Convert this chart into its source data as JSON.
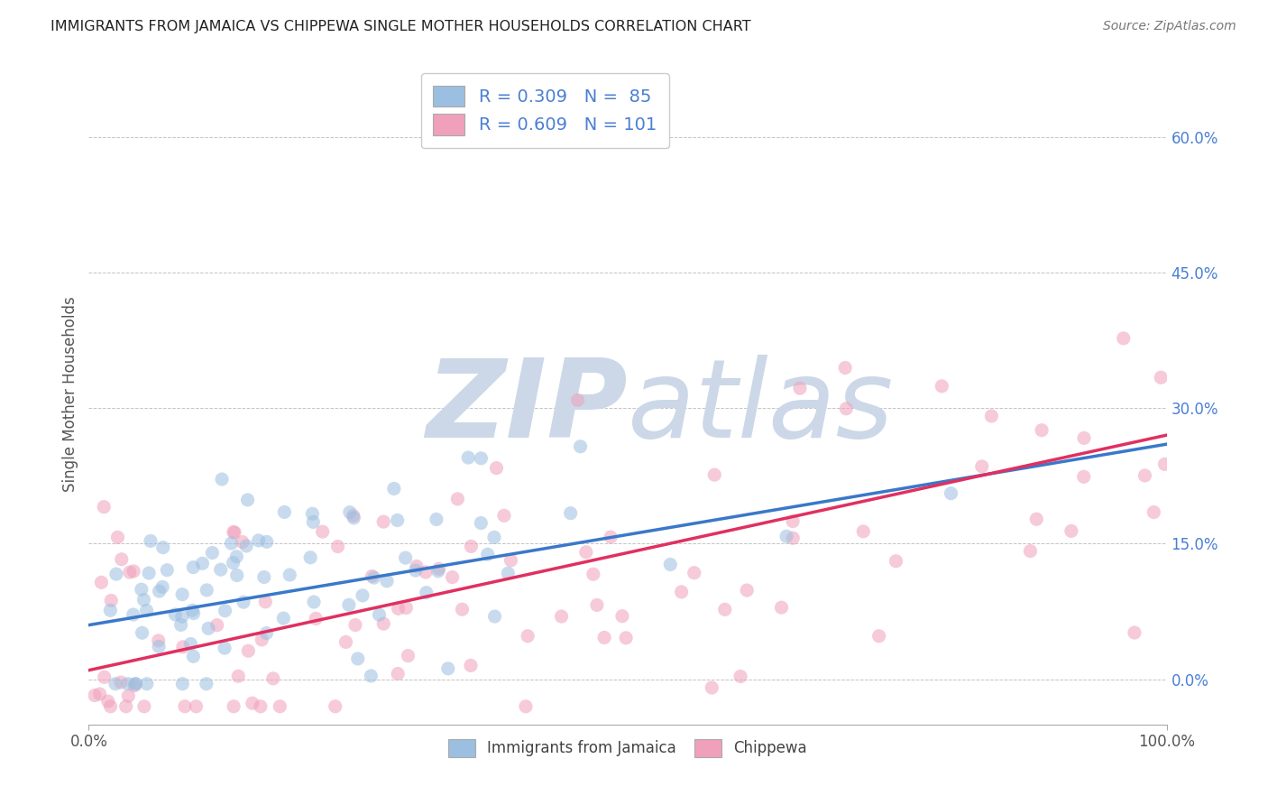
{
  "title": "IMMIGRANTS FROM JAMAICA VS CHIPPEWA SINGLE MOTHER HOUSEHOLDS CORRELATION CHART",
  "source": "Source: ZipAtlas.com",
  "ylabel": "Single Mother Households",
  "legend_labels": [
    "Immigrants from Jamaica",
    "Chippewa"
  ],
  "jamaica_color": "#9bbfe0",
  "chippewa_color": "#f0a0ba",
  "jamaica_line_color": "#3a78c9",
  "chippewa_line_color": "#e03060",
  "ytick_color": "#4a7fd4",
  "R_jamaica": 0.309,
  "N_jamaica": 85,
  "R_chippewa": 0.609,
  "N_chippewa": 101,
  "xlim": [
    0.0,
    1.0
  ],
  "ylim": [
    -0.05,
    0.68
  ],
  "yticks": [
    0.0,
    0.15,
    0.3,
    0.45,
    0.6
  ],
  "xtick_labels": [
    "0.0%",
    "100.0%"
  ],
  "xtick_positions": [
    0.0,
    1.0
  ],
  "background_color": "#ffffff",
  "watermark_color": "#ccd8e8",
  "jamaica_intercept": 0.06,
  "jamaica_slope": 0.2,
  "chippewa_intercept": 0.01,
  "chippewa_slope": 0.26,
  "dot_size": 120,
  "dot_alpha": 0.55,
  "jamaica_seed": 42,
  "chippewa_seed": 77
}
